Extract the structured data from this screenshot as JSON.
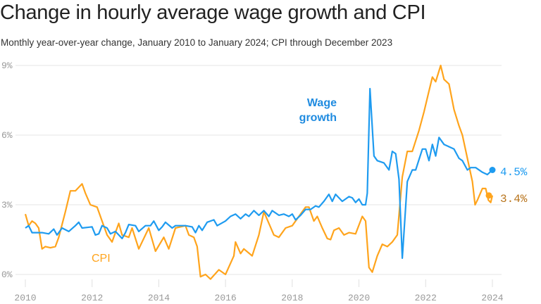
{
  "title": "Change in hourly average wage growth and CPI",
  "subtitle": "Monthly year-over-year change, January 2010 to January 2024; CPI through December 2023",
  "chart_data": {
    "type": "line",
    "title": "Change in hourly average wage growth and CPI",
    "subtitle": "Monthly year-over-year change, January 2010 to January 2024; CPI through December 2023",
    "xlim": [
      2010,
      2024
    ],
    "ylim": [
      0,
      9
    ],
    "x_ticks": [
      "2010",
      "2012",
      "2014",
      "2016",
      "2018",
      "2020",
      "2022",
      "2024"
    ],
    "y_ticks": [
      "0%",
      "3%",
      "6%",
      "9%"
    ],
    "grid": "horizontal",
    "colors": {
      "wage": "#1e9bf0",
      "cpi": "#ffa41c",
      "wage_label": "#1f8be0",
      "cpi_end_label": "#b8741c"
    },
    "series": [
      {
        "name": "Wage growth",
        "label_lines": [
          "Wage",
          "growth"
        ],
        "end_label": "4.5%",
        "points": [
          [
            2010,
            2.0
          ],
          [
            2010.1,
            2.1
          ],
          [
            2010.2,
            1.8
          ],
          [
            2010.5,
            1.8
          ],
          [
            2010.7,
            1.75
          ],
          [
            2010.85,
            1.95
          ],
          [
            2010.95,
            1.7
          ],
          [
            2011.1,
            2.0
          ],
          [
            2011.3,
            1.85
          ],
          [
            2011.5,
            2.1
          ],
          [
            2011.6,
            2.25
          ],
          [
            2011.7,
            2.0
          ],
          [
            2012.0,
            2.05
          ],
          [
            2012.1,
            1.7
          ],
          [
            2012.2,
            1.75
          ],
          [
            2012.3,
            2.1
          ],
          [
            2012.45,
            2.0
          ],
          [
            2012.55,
            1.75
          ],
          [
            2012.7,
            1.85
          ],
          [
            2012.8,
            1.7
          ],
          [
            2012.9,
            1.55
          ],
          [
            2013.0,
            1.8
          ],
          [
            2013.1,
            2.15
          ],
          [
            2013.3,
            2.1
          ],
          [
            2013.4,
            1.85
          ],
          [
            2013.6,
            2.1
          ],
          [
            2013.75,
            2.1
          ],
          [
            2013.85,
            2.3
          ],
          [
            2014.0,
            1.9
          ],
          [
            2014.1,
            2.05
          ],
          [
            2014.2,
            2.25
          ],
          [
            2014.4,
            2.0
          ],
          [
            2014.5,
            2.1
          ],
          [
            2014.8,
            2.1
          ],
          [
            2015.0,
            2.05
          ],
          [
            2015.1,
            1.8
          ],
          [
            2015.2,
            2.1
          ],
          [
            2015.3,
            1.9
          ],
          [
            2015.45,
            2.25
          ],
          [
            2015.65,
            2.35
          ],
          [
            2015.75,
            2.1
          ],
          [
            2016.0,
            2.3
          ],
          [
            2016.15,
            2.5
          ],
          [
            2016.3,
            2.6
          ],
          [
            2016.45,
            2.4
          ],
          [
            2016.6,
            2.6
          ],
          [
            2016.7,
            2.5
          ],
          [
            2016.85,
            2.75
          ],
          [
            2017.0,
            2.55
          ],
          [
            2017.15,
            2.75
          ],
          [
            2017.3,
            2.5
          ],
          [
            2017.4,
            2.75
          ],
          [
            2017.6,
            2.55
          ],
          [
            2017.75,
            2.6
          ],
          [
            2017.9,
            2.5
          ],
          [
            2018.0,
            2.6
          ],
          [
            2018.1,
            2.35
          ],
          [
            2018.25,
            2.55
          ],
          [
            2018.4,
            2.8
          ],
          [
            2018.55,
            2.8
          ],
          [
            2018.7,
            2.95
          ],
          [
            2018.8,
            2.9
          ],
          [
            2018.95,
            3.15
          ],
          [
            2019.1,
            3.45
          ],
          [
            2019.2,
            3.15
          ],
          [
            2019.3,
            3.45
          ],
          [
            2019.5,
            3.15
          ],
          [
            2019.7,
            3.35
          ],
          [
            2019.8,
            3.3
          ],
          [
            2019.9,
            3.1
          ],
          [
            2020.0,
            3.25
          ],
          [
            2020.1,
            3.0
          ],
          [
            2020.2,
            3.0
          ],
          [
            2020.25,
            3.5
          ],
          [
            2020.33,
            8.0
          ],
          [
            2020.45,
            5.1
          ],
          [
            2020.55,
            4.9
          ],
          [
            2020.75,
            4.8
          ],
          [
            2020.9,
            4.5
          ],
          [
            2021.0,
            5.3
          ],
          [
            2021.1,
            5.2
          ],
          [
            2021.2,
            4.1
          ],
          [
            2021.3,
            0.7
          ],
          [
            2021.45,
            4.0
          ],
          [
            2021.6,
            4.5
          ],
          [
            2021.7,
            4.5
          ],
          [
            2021.9,
            5.4
          ],
          [
            2022.0,
            5.4
          ],
          [
            2022.1,
            4.9
          ],
          [
            2022.2,
            5.6
          ],
          [
            2022.3,
            5.1
          ],
          [
            2022.4,
            5.9
          ],
          [
            2022.55,
            5.6
          ],
          [
            2022.7,
            5.5
          ],
          [
            2022.85,
            5.4
          ],
          [
            2023.0,
            5.0
          ],
          [
            2023.1,
            4.9
          ],
          [
            2023.25,
            4.5
          ],
          [
            2023.35,
            4.6
          ],
          [
            2023.5,
            4.6
          ],
          [
            2023.7,
            4.4
          ],
          [
            2023.85,
            4.3
          ],
          [
            2024.0,
            4.5
          ]
        ]
      },
      {
        "name": "CPI",
        "end_label": "3.4%",
        "points": [
          [
            2010,
            2.6
          ],
          [
            2010.1,
            2.1
          ],
          [
            2010.2,
            2.3
          ],
          [
            2010.3,
            2.2
          ],
          [
            2010.4,
            2.0
          ],
          [
            2010.5,
            1.1
          ],
          [
            2010.6,
            1.2
          ],
          [
            2010.75,
            1.15
          ],
          [
            2010.9,
            1.2
          ],
          [
            2011.0,
            1.6
          ],
          [
            2011.2,
            2.7
          ],
          [
            2011.35,
            3.6
          ],
          [
            2011.5,
            3.6
          ],
          [
            2011.7,
            3.9
          ],
          [
            2011.8,
            3.5
          ],
          [
            2011.95,
            3.0
          ],
          [
            2012.15,
            2.9
          ],
          [
            2012.3,
            2.3
          ],
          [
            2012.45,
            1.7
          ],
          [
            2012.6,
            1.4
          ],
          [
            2012.8,
            2.2
          ],
          [
            2012.9,
            1.7
          ],
          [
            2013.1,
            1.6
          ],
          [
            2013.2,
            2.0
          ],
          [
            2013.4,
            1.1
          ],
          [
            2013.7,
            2.0
          ],
          [
            2013.9,
            1.0
          ],
          [
            2014.15,
            1.6
          ],
          [
            2014.3,
            1.1
          ],
          [
            2014.5,
            2.0
          ],
          [
            2014.8,
            2.1
          ],
          [
            2014.9,
            1.7
          ],
          [
            2015.05,
            1.6
          ],
          [
            2015.15,
            1.2
          ],
          [
            2015.25,
            -0.1
          ],
          [
            2015.4,
            0.0
          ],
          [
            2015.55,
            -0.2
          ],
          [
            2015.8,
            0.2
          ],
          [
            2016.0,
            0.0
          ],
          [
            2016.25,
            0.8
          ],
          [
            2016.3,
            1.4
          ],
          [
            2016.45,
            0.9
          ],
          [
            2016.55,
            1.1
          ],
          [
            2016.8,
            0.8
          ],
          [
            2017.0,
            1.7
          ],
          [
            2017.15,
            2.7
          ],
          [
            2017.3,
            2.2
          ],
          [
            2017.45,
            1.7
          ],
          [
            2017.6,
            1.6
          ],
          [
            2017.8,
            2.0
          ],
          [
            2018.0,
            2.1
          ],
          [
            2018.2,
            2.5
          ],
          [
            2018.4,
            2.9
          ],
          [
            2018.5,
            2.9
          ],
          [
            2018.65,
            2.3
          ],
          [
            2018.75,
            2.5
          ],
          [
            2018.9,
            2.0
          ],
          [
            2019.05,
            1.55
          ],
          [
            2019.15,
            1.5
          ],
          [
            2019.25,
            1.9
          ],
          [
            2019.4,
            2.0
          ],
          [
            2019.55,
            1.7
          ],
          [
            2019.7,
            1.8
          ],
          [
            2019.9,
            1.75
          ],
          [
            2020.1,
            2.5
          ],
          [
            2020.2,
            2.3
          ],
          [
            2020.3,
            0.3
          ],
          [
            2020.4,
            0.1
          ],
          [
            2020.55,
            0.8
          ],
          [
            2020.7,
            1.3
          ],
          [
            2020.85,
            1.2
          ],
          [
            2021.0,
            1.4
          ],
          [
            2021.15,
            1.7
          ],
          [
            2021.3,
            4.2
          ],
          [
            2021.45,
            5.3
          ],
          [
            2021.6,
            5.3
          ],
          [
            2021.8,
            6.2
          ],
          [
            2021.95,
            7.0
          ],
          [
            2022.1,
            7.9
          ],
          [
            2022.2,
            8.5
          ],
          [
            2022.3,
            8.3
          ],
          [
            2022.45,
            9.0
          ],
          [
            2022.55,
            8.4
          ],
          [
            2022.7,
            8.2
          ],
          [
            2022.85,
            7.1
          ],
          [
            2023.0,
            6.4
          ],
          [
            2023.1,
            6.0
          ],
          [
            2023.25,
            5.0
          ],
          [
            2023.4,
            4.0
          ],
          [
            2023.48,
            3.0
          ],
          [
            2023.55,
            3.2
          ],
          [
            2023.7,
            3.7
          ],
          [
            2023.8,
            3.7
          ],
          [
            2023.88,
            3.2
          ],
          [
            2023.95,
            3.1
          ],
          [
            2024.0,
            3.4
          ]
        ]
      }
    ]
  }
}
